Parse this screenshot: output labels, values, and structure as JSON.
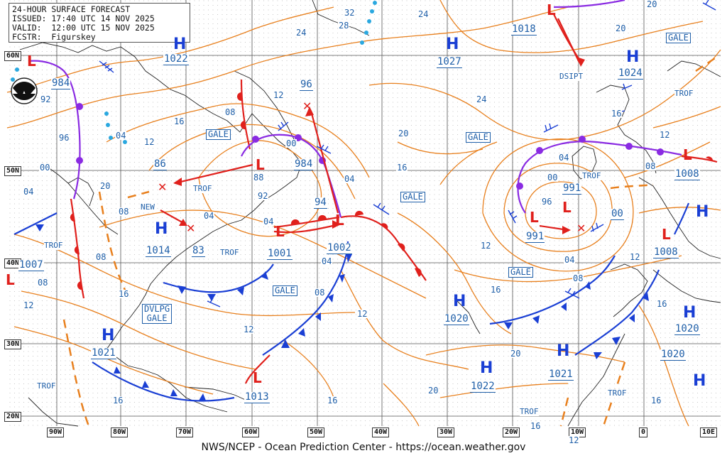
{
  "header": {
    "line1": "24-HOUR SURFACE FORECAST",
    "line2": "ISSUED: 17:40 UTC 14 NOV 2025",
    "line3": "VALID:  12:00 UTC 15 NOV 2025",
    "line4": "FCSTR:  Figurskey"
  },
  "footer": "NWS/NCEP - Ocean Prediction Center - https://ocean.weather.gov",
  "logo": "noaa-logo",
  "axes": {
    "lon_labels": [
      "90W",
      "80W",
      "70W",
      "60W",
      "50W",
      "40W",
      "30W",
      "20W",
      "10W",
      "0",
      "10E"
    ],
    "lat_labels": [
      "60N",
      "50N",
      "40N",
      "30N",
      "20N"
    ]
  },
  "highs": [
    {
      "id": "h1",
      "label": "H",
      "pressure": "1022"
    },
    {
      "id": "h2",
      "label": "H",
      "pressure": "1027"
    },
    {
      "id": "h3",
      "label": "H",
      "pressure": "1024"
    },
    {
      "id": "h4",
      "label": "H",
      "pressure": "1014"
    },
    {
      "id": "h5",
      "label": "H",
      "pressure": "1020"
    },
    {
      "id": "h6",
      "label": "H",
      "pressure": "1021"
    },
    {
      "id": "h7",
      "label": "H",
      "pressure": "1022"
    },
    {
      "id": "h8",
      "label": "H",
      "pressure": "1021"
    },
    {
      "id": "h9",
      "label": "H",
      "pressure": "1020"
    },
    {
      "id": "h10",
      "label": "H",
      "pressure": "1020"
    },
    {
      "id": "h11",
      "label": "H",
      "pressure": ""
    },
    {
      "id": "h12",
      "label": "H",
      "pressure": ""
    }
  ],
  "lows": [
    {
      "id": "l1",
      "label": "L",
      "pressure": "984"
    },
    {
      "id": "l2",
      "label": "L",
      "pressure": "1018"
    },
    {
      "id": "l3",
      "label": "L",
      "pressure": "984"
    },
    {
      "id": "l4",
      "label": "L",
      "pressure": "1001"
    },
    {
      "id": "l5",
      "label": "L",
      "pressure": "1002"
    },
    {
      "id": "l6",
      "label": "L",
      "pressure": "991"
    },
    {
      "id": "l7",
      "label": "L",
      "pressure": "991"
    },
    {
      "id": "l8",
      "label": "L",
      "pressure": "1008"
    },
    {
      "id": "l9",
      "label": "L",
      "pressure": "1008"
    },
    {
      "id": "l10",
      "label": "L",
      "pressure": "1013"
    },
    {
      "id": "l11",
      "label": "L",
      "pressure": "1007"
    }
  ],
  "gale_labels": [
    "GALE",
    "GALE",
    "GALE",
    "GALE",
    "GALE",
    "GALE"
  ],
  "dvlpg_gale": {
    "line1": "DVLPG",
    "line2": "GALE"
  },
  "trof_labels": [
    "TROF",
    "TROF",
    "TROF",
    "TROF",
    "TROF",
    "TROF",
    "TROF",
    "TROF"
  ],
  "misc_labels": {
    "new": "NEW",
    "dsipt": "DSIPT",
    "p86": "86",
    "p83": "83",
    "p96": "96",
    "p94": "94",
    "p00": "00",
    "p88": "88",
    "p92": "92",
    "p32": "32",
    "p28": "28"
  },
  "isobar_labels": [
    "24",
    "16",
    "12",
    "08",
    "04",
    "00",
    "20",
    "96",
    "92",
    "04",
    "12",
    "16",
    "20",
    "24",
    "08",
    "04",
    "12",
    "16",
    "20",
    "12",
    "08",
    "04",
    "16",
    "20",
    "24",
    "12",
    "08",
    "16",
    "20",
    "16",
    "12",
    "16",
    "20",
    "04",
    "00",
    "96",
    "04",
    "08",
    "12",
    "16",
    "08",
    "04",
    "00",
    "12",
    "16",
    "04",
    "08",
    "12",
    "16",
    "20",
    "16",
    "12"
  ]
}
